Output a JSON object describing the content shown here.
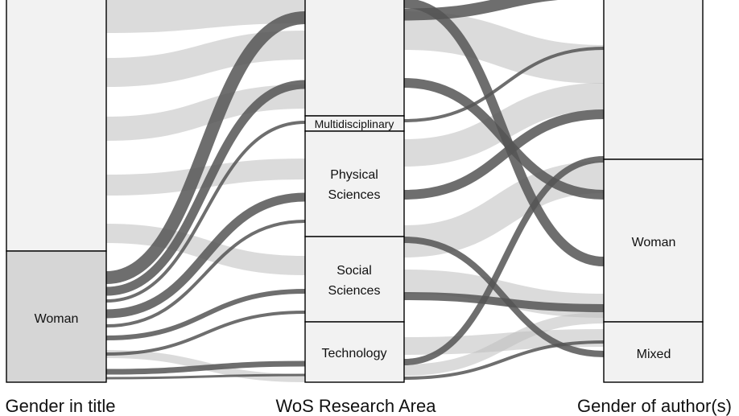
{
  "axes": {
    "left": "Gender in title",
    "middle": "WoS Research Area",
    "right": "Gender of author(s)"
  },
  "nodes": {
    "left": [
      "Woman"
    ],
    "middle": [
      "Multidisciplinary",
      "Physical Sciences",
      "Social Sciences",
      "Technology"
    ],
    "right": [
      "Woman",
      "Mixed"
    ]
  },
  "node_labels": {
    "woman_left": "Woman",
    "multidisciplinary": "Multidisciplinary",
    "physical_line1": "Physical",
    "physical_line2": "Sciences",
    "social_line1": "Social",
    "social_line2": "Sciences",
    "technology": "Technology",
    "woman_right": "Woman",
    "mixed": "Mixed"
  },
  "colors": {
    "light_node": "#f2f2f2",
    "highlight_node": "#d6d6d6",
    "light_flow": "#bdbdbd",
    "dark_flow": "#555555",
    "stroke": "#000000"
  }
}
